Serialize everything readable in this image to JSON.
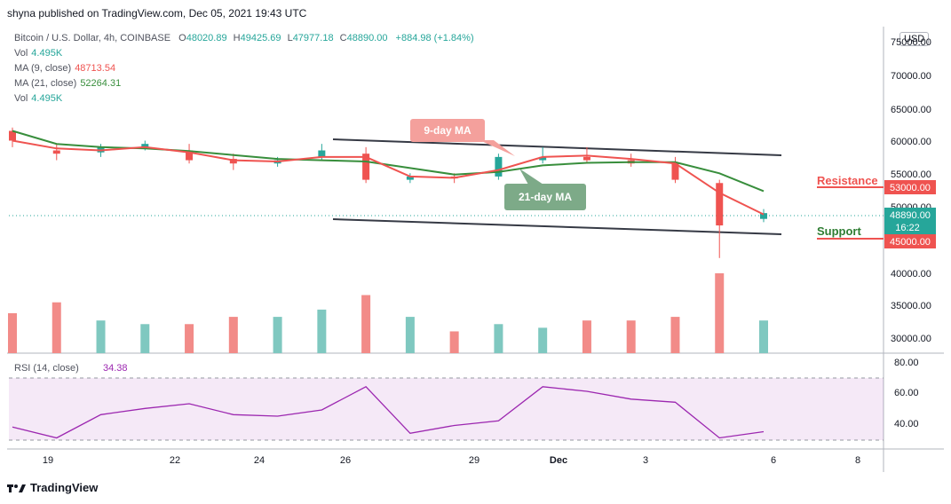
{
  "header": {
    "published": "shyna published on TradingView.com, Dec 05, 2021 19:43 UTC"
  },
  "legend": {
    "symbol": "Bitcoin / U.S. Dollar, 4h, COINBASE",
    "ohlc": {
      "o_label": "O",
      "o": "48020.89",
      "h_label": "H",
      "h": "49425.69",
      "l_label": "L",
      "l": "47977.18",
      "c_label": "C",
      "c": "48890.00",
      "change": "+884.98 (+1.84%)"
    },
    "rows": [
      {
        "label": "Vol",
        "value": "4.495K",
        "color": "#26a69a"
      },
      {
        "label": "MA (9, close)",
        "value": "48713.54",
        "color": "#ef5350"
      },
      {
        "label": "MA (21, close)",
        "value": "52264.31",
        "color": "#388e3c"
      },
      {
        "label": "Vol",
        "value": "4.495K",
        "color": "#26a69a"
      }
    ],
    "rsi_label": "RSI (14, close)",
    "rsi_value": "34.38"
  },
  "currency": "USD",
  "price_axis": {
    "labels": [
      "75000.00",
      "70000.00",
      "65000.00",
      "60000.00",
      "55000.00",
      "50000.00",
      "40000.00",
      "35000.00",
      "30000.00"
    ]
  },
  "rsi_axis": {
    "labels": [
      "80.00",
      "60.00",
      "40.00"
    ]
  },
  "time_axis": {
    "labels": [
      "19",
      "22",
      "24",
      "26",
      "29",
      "Dec",
      "3",
      "6",
      "8"
    ]
  },
  "price_tags": {
    "resistance": {
      "label": "53000.00",
      "color": "#ef5350"
    },
    "last": {
      "label": "48890.00",
      "time": "16:22",
      "color": "#26a69a"
    },
    "support": {
      "label": "45000.00",
      "color": "#ef5350"
    }
  },
  "annotations": {
    "ma9": "9-day MA",
    "ma21": "21-day MA",
    "resistance": "Resistance",
    "support": "Support"
  },
  "footer": {
    "brand": "TradingView"
  },
  "chart_data": {
    "type": "candlestick",
    "symbol": "BTC/USD",
    "interval": "4h",
    "price_range": [
      45000,
      75000
    ],
    "candles_approx": [
      {
        "x": "18",
        "o": 61500,
        "h": 62000,
        "l": 59000,
        "c": 60000
      },
      {
        "x": "19",
        "o": 58500,
        "h": 59500,
        "l": 57000,
        "c": 58000
      },
      {
        "x": "20",
        "o": 58200,
        "h": 59500,
        "l": 57500,
        "c": 59000
      },
      {
        "x": "21",
        "o": 59000,
        "h": 60000,
        "l": 58500,
        "c": 59500
      },
      {
        "x": "22",
        "o": 58500,
        "h": 59500,
        "l": 56500,
        "c": 57000
      },
      {
        "x": "23",
        "o": 57200,
        "h": 58000,
        "l": 55500,
        "c": 56500
      },
      {
        "x": "24",
        "o": 56500,
        "h": 57500,
        "l": 56000,
        "c": 57000
      },
      {
        "x": "25",
        "o": 57500,
        "h": 59500,
        "l": 57000,
        "c": 58500
      },
      {
        "x": "26",
        "o": 58000,
        "h": 59000,
        "l": 53500,
        "c": 54000
      },
      {
        "x": "27",
        "o": 54000,
        "h": 55000,
        "l": 53500,
        "c": 54500
      },
      {
        "x": "28",
        "o": 54500,
        "h": 55000,
        "l": 53500,
        "c": 54200
      },
      {
        "x": "29",
        "o": 54500,
        "h": 58000,
        "l": 54000,
        "c": 57500
      },
      {
        "x": "30",
        "o": 57000,
        "h": 59000,
        "l": 56500,
        "c": 57500
      },
      {
        "x": "Dec",
        "o": 57500,
        "h": 59000,
        "l": 56500,
        "c": 57000
      },
      {
        "x": "2",
        "o": 57000,
        "h": 58000,
        "l": 56000,
        "c": 56500
      },
      {
        "x": "3",
        "o": 56500,
        "h": 57500,
        "l": 53500,
        "c": 54000
      },
      {
        "x": "4",
        "o": 53500,
        "h": 54000,
        "l": 42000,
        "c": 47000
      },
      {
        "x": "5",
        "o": 48000,
        "h": 49500,
        "l": 47500,
        "c": 48890
      }
    ],
    "ma9_approx": [
      60000,
      58800,
      58500,
      59000,
      58200,
      57000,
      56800,
      57500,
      57500,
      54500,
      54300,
      55500,
      57500,
      57700,
      57200,
      56500,
      52000,
      48700
    ],
    "ma21_approx": [
      61500,
      59500,
      59000,
      58800,
      58400,
      57800,
      57200,
      57000,
      56800,
      55800,
      54800,
      55200,
      56200,
      56600,
      56700,
      56700,
      55000,
      52264
    ],
    "rsi_approx": [
      37,
      30,
      45,
      49,
      52,
      45,
      44,
      48,
      63,
      33,
      38,
      41,
      63,
      60,
      55,
      53,
      30,
      34
    ],
    "volume_approx": [
      11,
      14,
      9,
      8,
      8,
      10,
      10,
      12,
      16,
      10,
      6,
      8,
      7,
      9,
      9,
      10,
      22,
      9
    ],
    "levels": {
      "resistance": 53000,
      "support": 45000
    }
  }
}
